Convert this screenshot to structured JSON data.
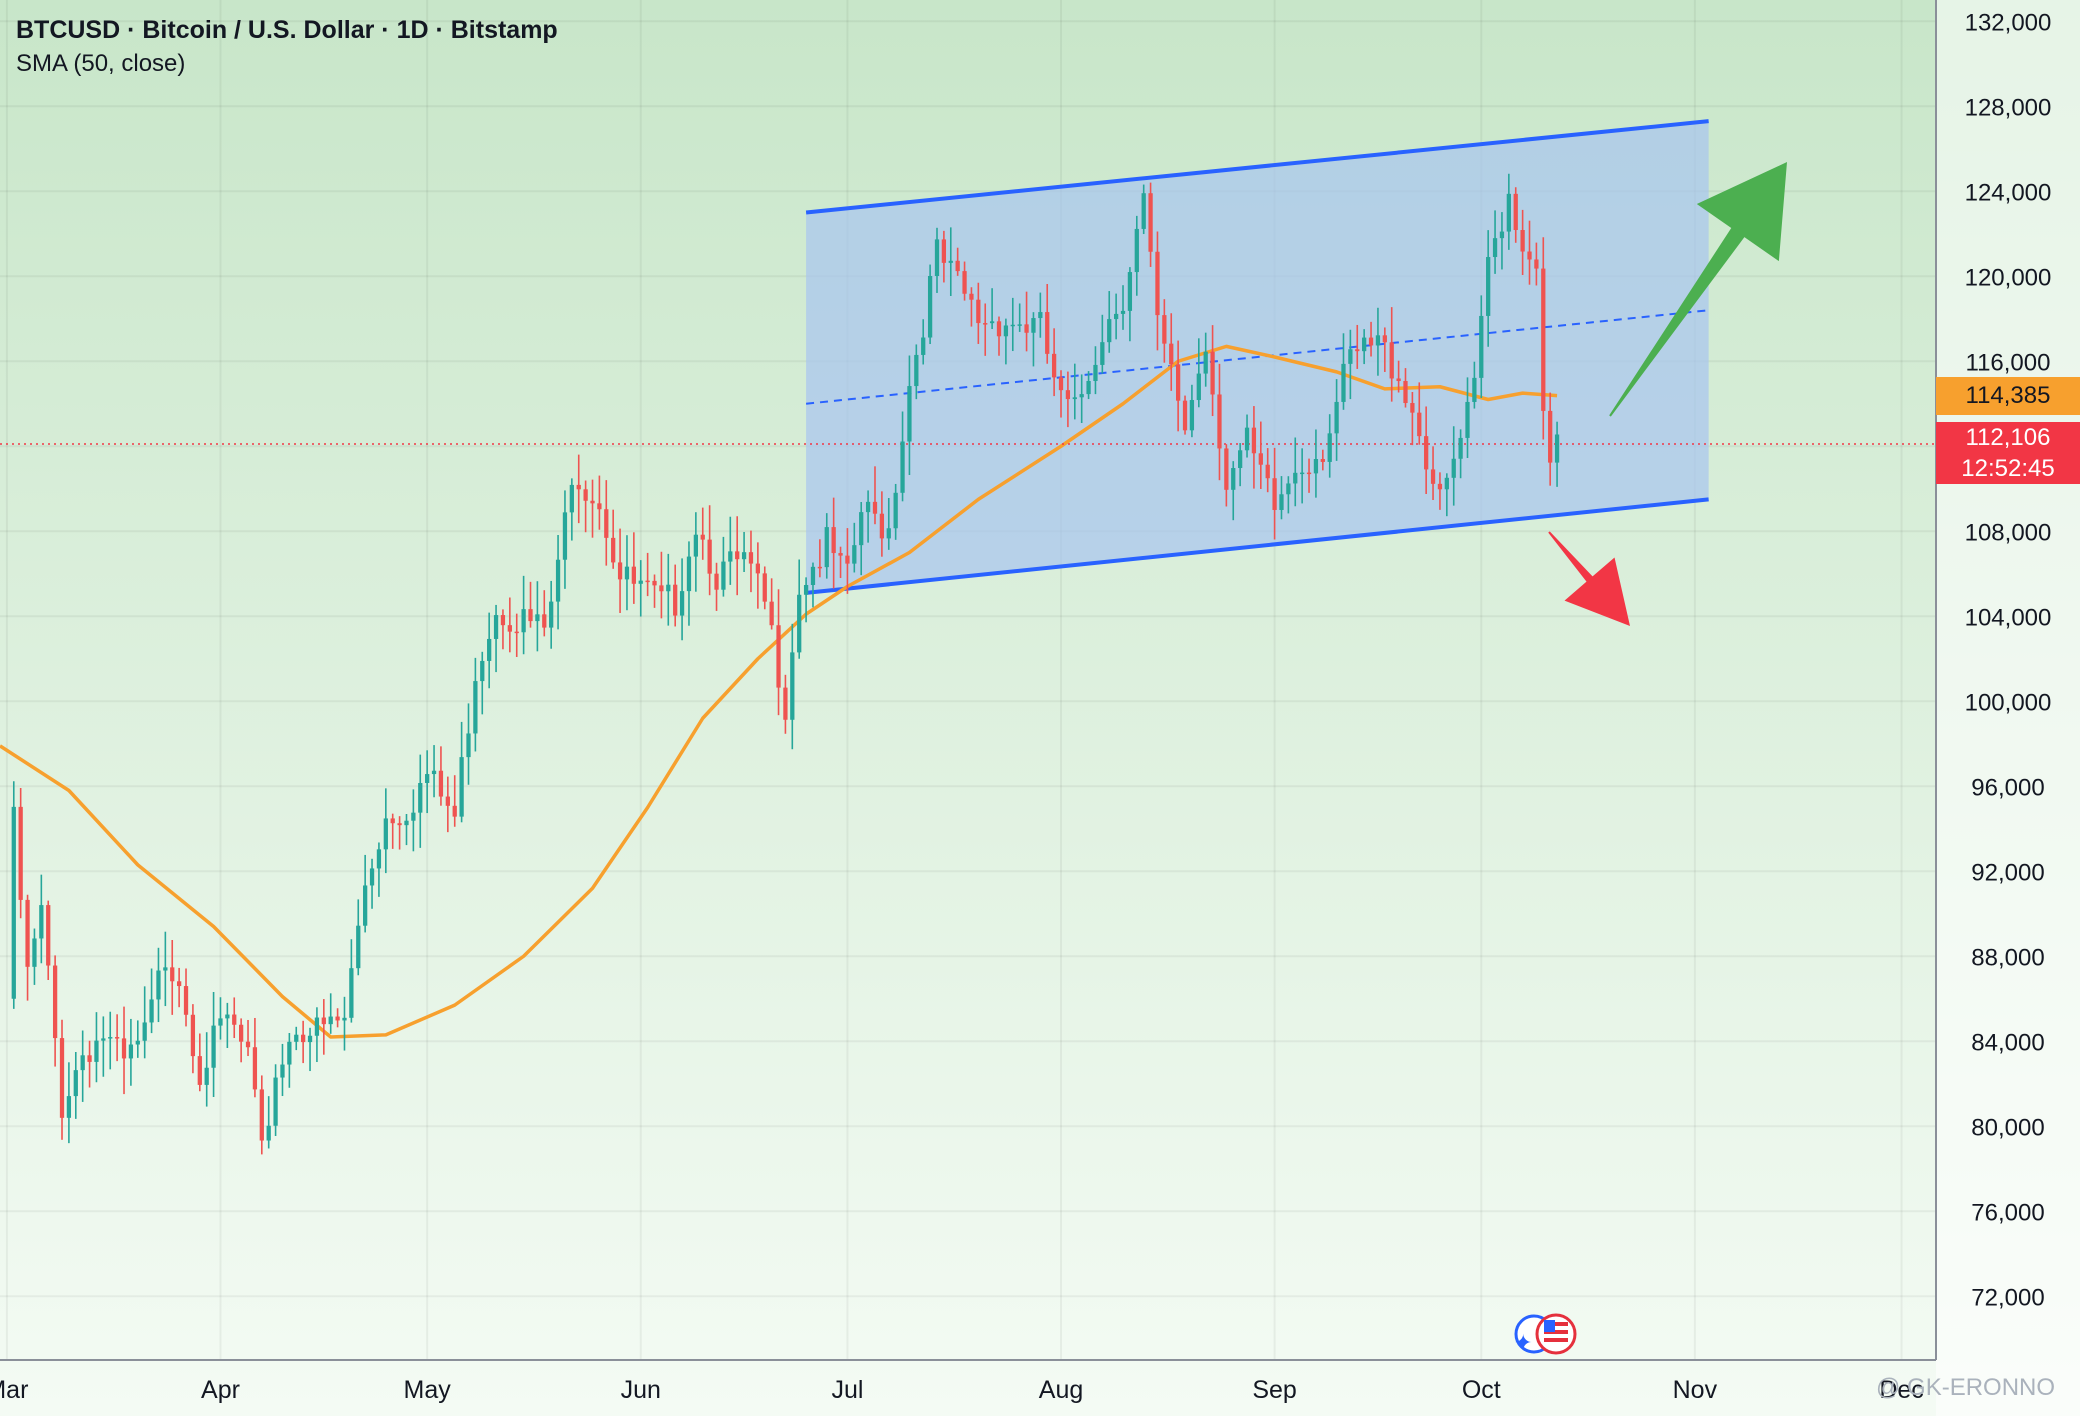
{
  "header": {
    "title": "BTCUSD · Bitcoin / U.S. Dollar · 1D · Bitstamp",
    "indicator": "SMA (50, close)"
  },
  "price_tags": {
    "sma_value": "114,385",
    "last_price": "112,106",
    "countdown": "12:52:45"
  },
  "watermark": "@ GK-ERONNO",
  "colors": {
    "bg_top": "#c8e6c9",
    "bg_bottom": "#f4fbf4",
    "up": "#26a69a",
    "down": "#ef5350",
    "sma": "#f7a02e",
    "channel_line": "#2962ff",
    "channel_fill": "#a8c4ef",
    "arrow_up": "#4caf50",
    "arrow_down": "#f23645",
    "last_price_line": "#f23645"
  },
  "chart_data": {
    "type": "candlestick",
    "symbol": "BTCUSD",
    "timeframe": "1D",
    "exchange": "Bitstamp",
    "ylim": [
      69000,
      133000
    ],
    "y_ticks": [
      72000,
      76000,
      80000,
      84000,
      88000,
      92000,
      96000,
      100000,
      104000,
      108000,
      112000,
      116000,
      120000,
      124000,
      128000,
      132000
    ],
    "x_start": "2025-02-28",
    "x_end": "2025-12-06",
    "x_ticks": [
      {
        "date": "2025-03-01",
        "label": "Mar"
      },
      {
        "date": "2025-04-01",
        "label": "Apr"
      },
      {
        "date": "2025-05-01",
        "label": "May"
      },
      {
        "date": "2025-06-01",
        "label": "Jun"
      },
      {
        "date": "2025-07-01",
        "label": "Jul"
      },
      {
        "date": "2025-08-01",
        "label": "Aug"
      },
      {
        "date": "2025-09-01",
        "label": "Sep"
      },
      {
        "date": "2025-10-01",
        "label": "Oct"
      },
      {
        "date": "2025-11-01",
        "label": "Nov"
      },
      {
        "date": "2025-12-01",
        "label": "Dec"
      }
    ],
    "close_path": [
      [
        "2025-03-01",
        86000
      ],
      [
        "2025-03-02",
        94200
      ],
      [
        "2025-03-04",
        87000
      ],
      [
        "2025-03-06",
        90000
      ],
      [
        "2025-03-09",
        81000
      ],
      [
        "2025-03-12",
        83500
      ],
      [
        "2025-03-15",
        84300
      ],
      [
        "2025-03-18",
        82800
      ],
      [
        "2025-03-21",
        84200
      ],
      [
        "2025-03-24",
        88000
      ],
      [
        "2025-03-26",
        87200
      ],
      [
        "2025-03-29",
        82700
      ],
      [
        "2025-04-02",
        85000
      ],
      [
        "2025-04-05",
        83200
      ],
      [
        "2025-04-07",
        78500
      ],
      [
        "2025-04-09",
        82500
      ],
      [
        "2025-04-12",
        84800
      ],
      [
        "2025-04-15",
        84400
      ],
      [
        "2025-04-19",
        85000
      ],
      [
        "2025-04-22",
        91500
      ],
      [
        "2025-04-25",
        94600
      ],
      [
        "2025-04-28",
        95000
      ],
      [
        "2025-05-01",
        96500
      ],
      [
        "2025-05-05",
        94500
      ],
      [
        "2025-05-08",
        101500
      ],
      [
        "2025-05-11",
        104500
      ],
      [
        "2025-05-15",
        103800
      ],
      [
        "2025-05-18",
        103300
      ],
      [
        "2025-05-20",
        106000
      ],
      [
        "2025-05-22",
        111000
      ],
      [
        "2025-05-26",
        109500
      ],
      [
        "2025-05-29",
        105800
      ],
      [
        "2025-06-02",
        105000
      ],
      [
        "2025-06-04",
        104500
      ],
      [
        "2025-06-06",
        104800
      ],
      [
        "2025-06-09",
        108500
      ],
      [
        "2025-06-12",
        106000
      ],
      [
        "2025-06-16",
        106500
      ],
      [
        "2025-06-19",
        104500
      ],
      [
        "2025-06-22",
        100000
      ],
      [
        "2025-06-24",
        105500
      ],
      [
        "2025-06-28",
        107300
      ],
      [
        "2025-07-01",
        105600
      ],
      [
        "2025-07-03",
        108900
      ],
      [
        "2025-07-07",
        108200
      ],
      [
        "2025-07-10",
        115000
      ],
      [
        "2025-07-14",
        121000
      ],
      [
        "2025-07-17",
        119500
      ],
      [
        "2025-07-20",
        118000
      ],
      [
        "2025-07-23",
        118000
      ],
      [
        "2025-07-26",
        117800
      ],
      [
        "2025-07-29",
        117500
      ],
      [
        "2025-08-01",
        114000
      ],
      [
        "2025-08-03",
        113500
      ],
      [
        "2025-08-07",
        117500
      ],
      [
        "2025-08-10",
        119200
      ],
      [
        "2025-08-13",
        123500
      ],
      [
        "2025-08-15",
        117500
      ],
      [
        "2025-08-19",
        113000
      ],
      [
        "2025-08-22",
        116900
      ],
      [
        "2025-08-25",
        110500
      ],
      [
        "2025-08-28",
        112000
      ],
      [
        "2025-09-01",
        109000
      ],
      [
        "2025-09-04",
        111000
      ],
      [
        "2025-09-08",
        112000
      ],
      [
        "2025-09-12",
        116000
      ],
      [
        "2025-09-16",
        116800
      ],
      [
        "2025-09-19",
        115500
      ],
      [
        "2025-09-22",
        112800
      ],
      [
        "2025-09-25",
        109100
      ],
      [
        "2025-09-28",
        112200
      ],
      [
        "2025-09-30",
        114500
      ],
      [
        "2025-10-02",
        120700
      ],
      [
        "2025-10-05",
        124000
      ],
      [
        "2025-10-07",
        121500
      ],
      [
        "2025-10-09",
        121000
      ],
      [
        "2025-10-10",
        113000
      ],
      [
        "2025-10-11",
        110800
      ],
      [
        "2025-10-12",
        112106
      ]
    ],
    "series": [
      {
        "name": "SMA (50, close)",
        "type": "line",
        "points": [
          [
            "2025-02-28",
            97900
          ],
          [
            "2025-03-10",
            95800
          ],
          [
            "2025-03-20",
            92300
          ],
          [
            "2025-03-31",
            89400
          ],
          [
            "2025-04-10",
            86100
          ],
          [
            "2025-04-17",
            84200
          ],
          [
            "2025-04-25",
            84300
          ],
          [
            "2025-05-05",
            85700
          ],
          [
            "2025-05-15",
            88000
          ],
          [
            "2025-05-25",
            91200
          ],
          [
            "2025-06-02",
            95000
          ],
          [
            "2025-06-10",
            99200
          ],
          [
            "2025-06-18",
            102000
          ],
          [
            "2025-06-25",
            104100
          ],
          [
            "2025-07-01",
            105400
          ],
          [
            "2025-07-10",
            107000
          ],
          [
            "2025-07-20",
            109500
          ],
          [
            "2025-08-01",
            112000
          ],
          [
            "2025-08-10",
            114000
          ],
          [
            "2025-08-18",
            116000
          ],
          [
            "2025-08-25",
            116700
          ],
          [
            "2025-09-01",
            116200
          ],
          [
            "2025-09-10",
            115500
          ],
          [
            "2025-09-17",
            114700
          ],
          [
            "2025-09-25",
            114800
          ],
          [
            "2025-10-02",
            114200
          ],
          [
            "2025-10-07",
            114500
          ],
          [
            "2025-10-12",
            114385
          ]
        ]
      }
    ],
    "channel": {
      "start_date": "2025-06-25",
      "end_date": "2025-11-03",
      "upper": [
        123000,
        127300
      ],
      "lower": [
        105100,
        109500
      ],
      "mid": [
        114000,
        118400
      ]
    },
    "last_price": 112106,
    "sma_last": 114385
  }
}
